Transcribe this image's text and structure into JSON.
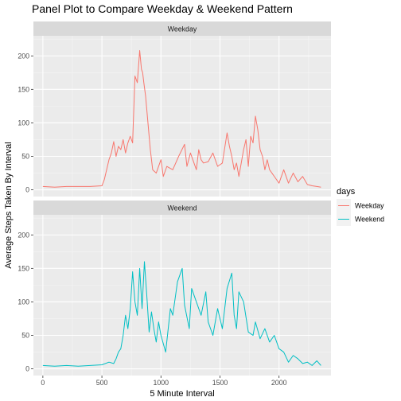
{
  "chart_data": {
    "type": "line",
    "title": "Panel Plot to Compare Weekday & Weekend Pattern",
    "xlabel": "5 Minute Interval",
    "ylabel": "Average Steps Taken By Interval",
    "xlim": [
      -80,
      2440
    ],
    "ylim": [
      -10,
      230
    ],
    "x_ticks": [
      0,
      500,
      1000,
      1500,
      2000
    ],
    "y_ticks": [
      0,
      50,
      100,
      150,
      200
    ],
    "facet_variable": "days",
    "legend": {
      "title": "days",
      "position": "right"
    },
    "grid": true,
    "colors": {
      "Weekday": "#F8766D",
      "Weekend": "#00BFC4"
    },
    "series": [
      {
        "name": "Weekday",
        "x": [
          0,
          100,
          200,
          300,
          400,
          500,
          520,
          540,
          560,
          580,
          600,
          620,
          640,
          660,
          680,
          700,
          720,
          740,
          760,
          780,
          800,
          820,
          835,
          845,
          855,
          870,
          890,
          910,
          930,
          960,
          1000,
          1020,
          1050,
          1100,
          1150,
          1200,
          1220,
          1250,
          1280,
          1300,
          1320,
          1340,
          1360,
          1400,
          1440,
          1480,
          1520,
          1560,
          1580,
          1600,
          1620,
          1640,
          1660,
          1700,
          1720,
          1740,
          1760,
          1780,
          1800,
          1820,
          1840,
          1860,
          1880,
          1900,
          1920,
          1940,
          1960,
          2000,
          2040,
          2080,
          2120,
          2160,
          2200,
          2240,
          2280,
          2320,
          2355
        ],
        "values": [
          5,
          4,
          5,
          5,
          5,
          6,
          15,
          30,
          45,
          55,
          72,
          50,
          65,
          60,
          75,
          55,
          70,
          80,
          70,
          170,
          160,
          208,
          180,
          175,
          160,
          140,
          100,
          60,
          30,
          25,
          45,
          20,
          35,
          30,
          50,
          68,
          35,
          55,
          40,
          30,
          60,
          45,
          40,
          42,
          55,
          35,
          40,
          85,
          65,
          50,
          30,
          40,
          20,
          60,
          75,
          35,
          80,
          70,
          110,
          90,
          60,
          50,
          30,
          45,
          30,
          25,
          20,
          10,
          30,
          10,
          25,
          12,
          20,
          8,
          6,
          5,
          4
        ]
      },
      {
        "name": "Weekend",
        "x": [
          0,
          100,
          200,
          300,
          400,
          500,
          560,
          600,
          620,
          640,
          660,
          680,
          700,
          720,
          740,
          760,
          780,
          800,
          820,
          840,
          860,
          880,
          900,
          920,
          940,
          960,
          980,
          1000,
          1040,
          1080,
          1100,
          1140,
          1180,
          1200,
          1240,
          1260,
          1300,
          1340,
          1380,
          1400,
          1440,
          1480,
          1520,
          1560,
          1600,
          1620,
          1640,
          1660,
          1700,
          1740,
          1780,
          1800,
          1840,
          1880,
          1920,
          1960,
          2000,
          2040,
          2080,
          2120,
          2160,
          2200,
          2240,
          2280,
          2320,
          2355
        ],
        "values": [
          5,
          4,
          5,
          4,
          5,
          6,
          10,
          8,
          15,
          25,
          30,
          50,
          80,
          60,
          90,
          145,
          100,
          80,
          150,
          90,
          160,
          110,
          55,
          85,
          60,
          40,
          70,
          50,
          25,
          90,
          80,
          130,
          150,
          95,
          60,
          120,
          100,
          80,
          115,
          70,
          50,
          90,
          60,
          120,
          143,
          80,
          60,
          115,
          100,
          55,
          50,
          70,
          45,
          60,
          40,
          50,
          30,
          25,
          10,
          20,
          15,
          8,
          10,
          5,
          12,
          5
        ]
      }
    ]
  }
}
